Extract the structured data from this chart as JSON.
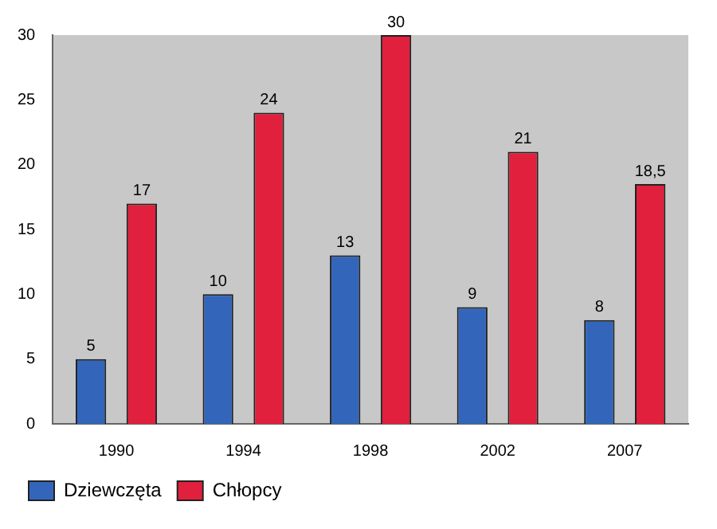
{
  "chart_data": {
    "type": "bar",
    "categories": [
      "1990",
      "1994",
      "1998",
      "2002",
      "2007"
    ],
    "series": [
      {
        "name": "Dziewczęta",
        "color": "#3366bb",
        "values": [
          5,
          10,
          13,
          9,
          8
        ],
        "value_labels": [
          "5",
          "10",
          "13",
          "9",
          "8"
        ]
      },
      {
        "name": "Chłopcy",
        "color": "#e0203c",
        "values": [
          17,
          24,
          30,
          21,
          18.5
        ],
        "value_labels": [
          "17",
          "24",
          "30",
          "21",
          "18,5"
        ]
      }
    ],
    "ylim": [
      0,
      30
    ],
    "yticks": [
      0,
      5,
      10,
      15,
      20,
      25,
      30
    ],
    "grid": false,
    "legend": "bottom left"
  }
}
